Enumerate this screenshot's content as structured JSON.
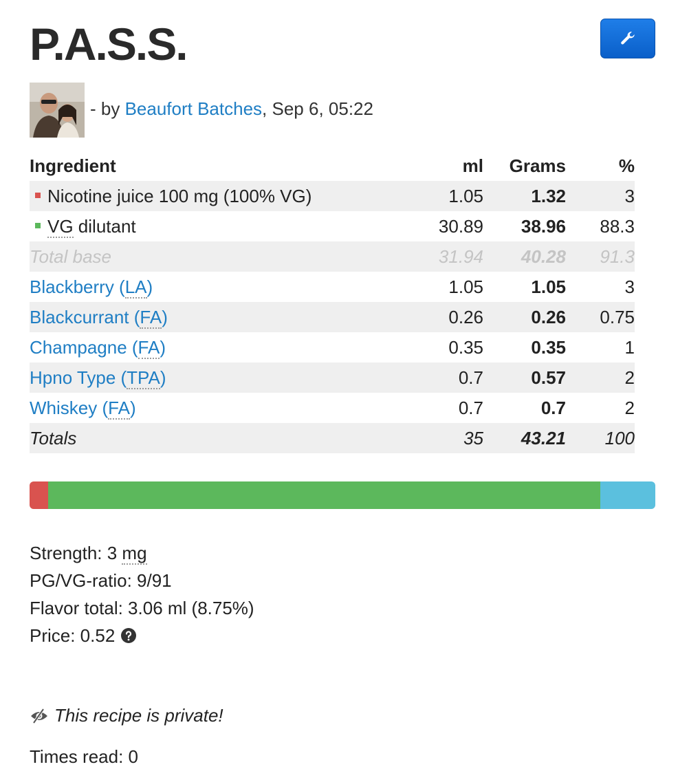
{
  "recipe": {
    "title": "P.A.S.S."
  },
  "byline": {
    "prefix": "- by ",
    "author": "Beaufort Batches",
    "separator": ", ",
    "date": "Sep 6, 05:22"
  },
  "table": {
    "headers": {
      "name": "Ingredient",
      "ml": "ml",
      "grams": "Grams",
      "pct": "%"
    },
    "base_rows": [
      {
        "name": "Nicotine juice 100 mg (100% VG)",
        "ml": "1.05",
        "grams": "1.32",
        "pct": "3",
        "color": "#d9534f"
      },
      {
        "name_abbr": "VG",
        "name_rest": " dilutant",
        "ml": "30.89",
        "grams": "38.96",
        "pct": "88.3",
        "color": "#5cb85c"
      }
    ],
    "total_base": {
      "label": "Total base",
      "ml": "31.94",
      "grams": "40.28",
      "pct": "91.3"
    },
    "flavors": [
      {
        "name": "Blackberry",
        "vendor": "LA",
        "ml": "1.05",
        "grams": "1.05",
        "pct": "3"
      },
      {
        "name": "Blackcurrant",
        "vendor": "FA",
        "ml": "0.26",
        "grams": "0.26",
        "pct": "0.75"
      },
      {
        "name": "Champagne",
        "vendor": "FA",
        "ml": "0.35",
        "grams": "0.35",
        "pct": "1"
      },
      {
        "name": "Hpno Type",
        "vendor": "TPA",
        "ml": "0.7",
        "grams": "0.57",
        "pct": "2"
      },
      {
        "name": "Whiskey",
        "vendor": "FA",
        "ml": "0.7",
        "grams": "0.7",
        "pct": "2"
      }
    ],
    "totals": {
      "label": "Totals",
      "ml": "35",
      "grams": "43.21",
      "pct": "100"
    }
  },
  "mix_bar": {
    "segments": [
      {
        "name": "nicotine",
        "percent": 3,
        "color": "#d9534f"
      },
      {
        "name": "vg-dilutant",
        "percent": 88.3,
        "color": "#5cb85c"
      },
      {
        "name": "flavor",
        "percent": 8.75,
        "color": "#5bc0de"
      }
    ]
  },
  "stats": {
    "strength_label": "Strength: ",
    "strength_value": "3 ",
    "strength_unit": "mg",
    "ratio": "PG/VG-ratio: 9/91",
    "flavor_total": "Flavor total: 3.06 ml (8.75%)",
    "price": "Price: 0.52"
  },
  "privacy": {
    "text": "This recipe is private!"
  },
  "times_read": {
    "text": "Times read: 0"
  },
  "icons": {
    "tool": "wrench-icon",
    "help": "question-circle-icon",
    "private": "eye-slash-icon"
  }
}
